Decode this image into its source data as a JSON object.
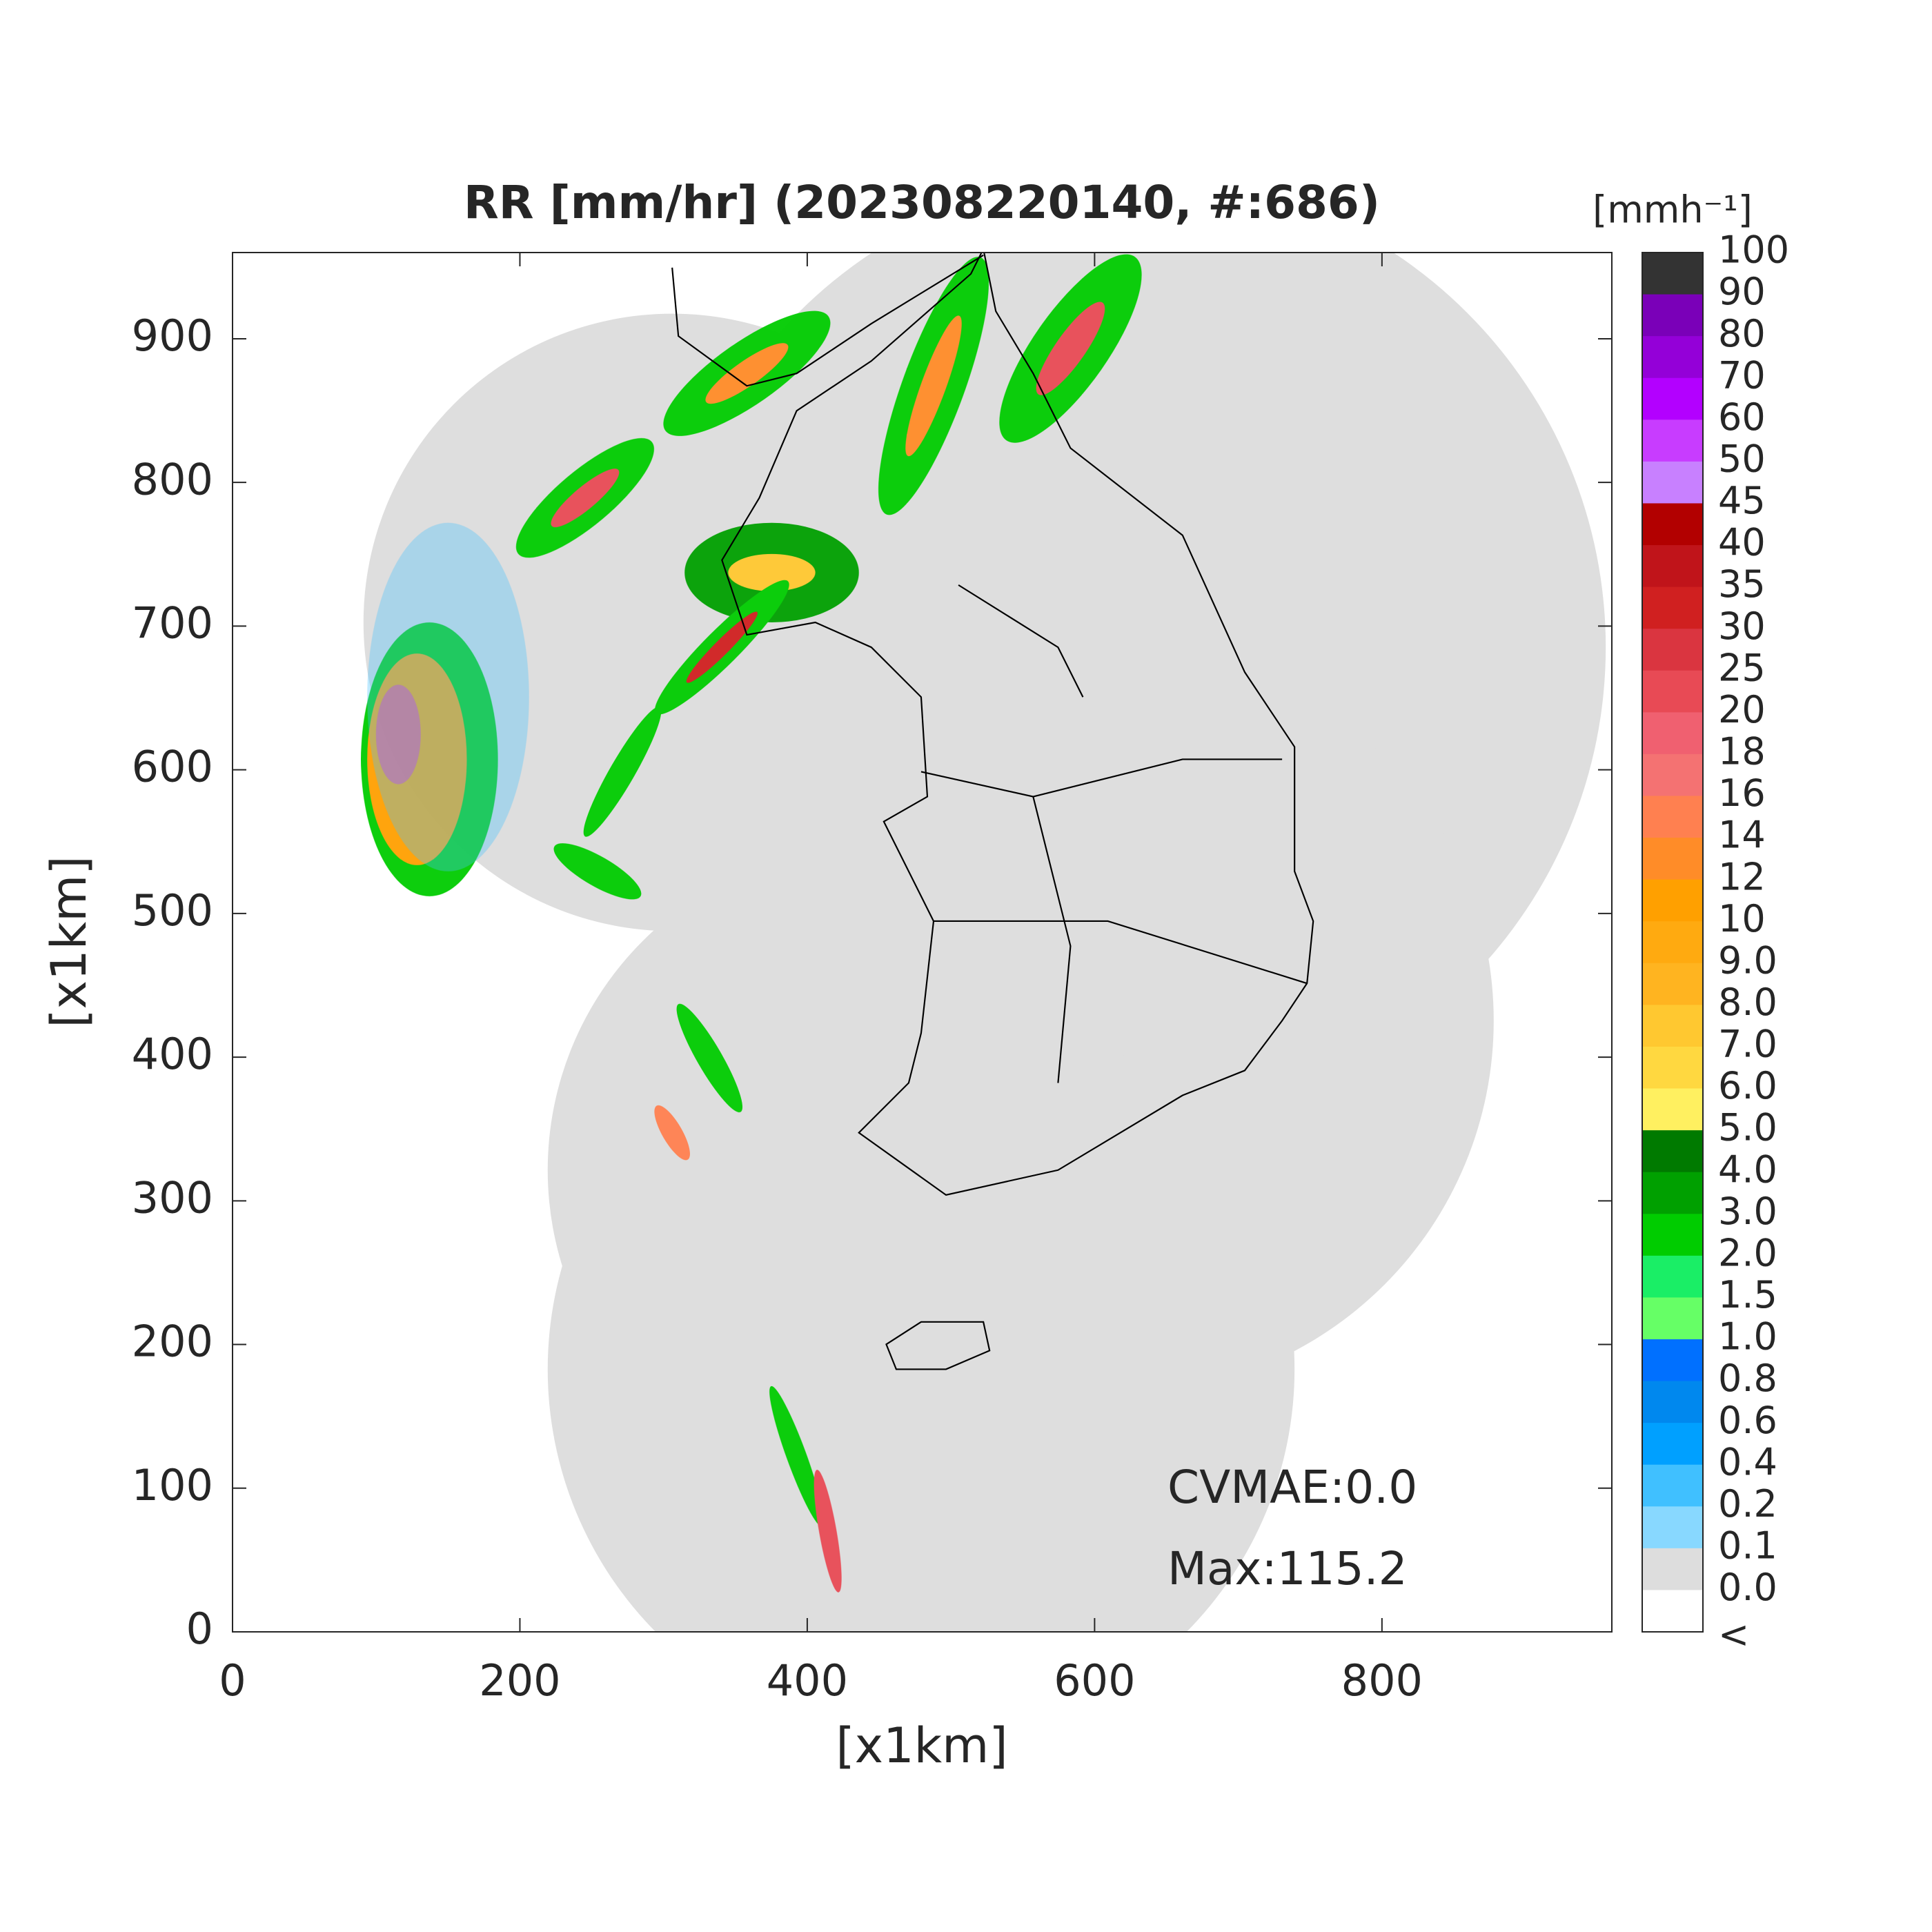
{
  "title": "RR [mm/hr] (202308220140, #:686)",
  "xlabel": "[x1km]",
  "ylabel": "[x1km]",
  "xlim": [
    0,
    960
  ],
  "ylim": [
    0,
    960
  ],
  "xticks": [
    0,
    200,
    400,
    600,
    800
  ],
  "yticks": [
    0,
    100,
    200,
    300,
    400,
    500,
    600,
    700,
    800,
    900
  ],
  "colorbar": {
    "title": "[mmh⁻¹]",
    "labels": [
      "100",
      "90",
      "80",
      "70",
      "60",
      "50",
      "45",
      "40",
      "35",
      "30",
      "25",
      "20",
      "18",
      "16",
      "14",
      "12",
      "10",
      "9.0",
      "8.0",
      "7.0",
      "6.0",
      "5.0",
      "4.0",
      "3.0",
      "2.0",
      "1.5",
      "1.0",
      "0.8",
      "0.6",
      "0.4",
      "0.2",
      "0.1",
      "0.0",
      "<"
    ],
    "colors": [
      "#333333",
      "#7a00b8",
      "#9400d8",
      "#b300ff",
      "#c83cff",
      "#c880ff",
      "#b20000",
      "#c0141a",
      "#d02020",
      "#da3540",
      "#e84a55",
      "#f06070",
      "#f47272",
      "#ff8050",
      "#ff8c28",
      "#ffa000",
      "#ffaa10",
      "#ffb420",
      "#ffc830",
      "#ffd840",
      "#fff060",
      "#007a00",
      "#00a000",
      "#00cc00",
      "#1aee66",
      "#66ff66",
      "#0070ff",
      "#0088ee",
      "#00a0ff",
      "#40c0ff",
      "#88d8ff",
      "#dddddd",
      "#ffffff"
    ]
  },
  "annotations": [
    "CVMAE:0.0",
    "Max:115.2"
  ]
}
